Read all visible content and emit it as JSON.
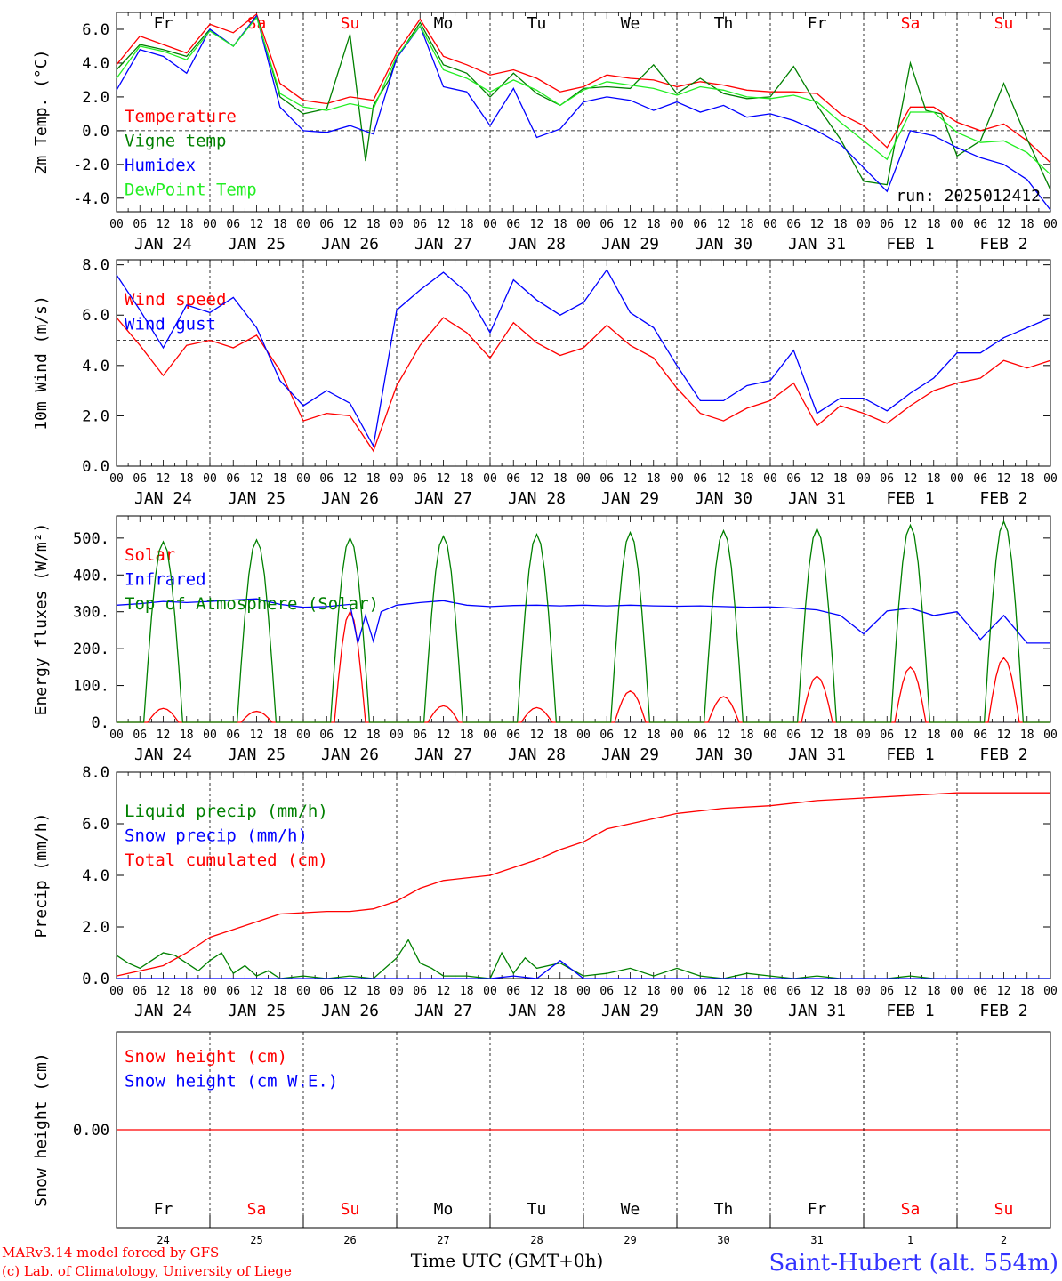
{
  "colors": {
    "red": "#ff0000",
    "green": "#008000",
    "blue": "#0000ff",
    "lightgreen": "#22ee22",
    "black": "#000000",
    "site": "#3333ff"
  },
  "time": {
    "start": "2025-01-24 00 UTC",
    "days": [
      "JAN 24",
      "JAN 25",
      "JAN 26",
      "JAN 27",
      "JAN 28",
      "JAN 29",
      "JAN 30",
      "JAN 31",
      "FEB  1",
      "FEB  2"
    ],
    "day_numbers": [
      "24",
      "25",
      "26",
      "27",
      "28",
      "29",
      "30",
      "31",
      "1",
      "2"
    ],
    "weekdays": [
      {
        "label": "Fr",
        "weekend": false
      },
      {
        "label": "Sa",
        "weekend": true
      },
      {
        "label": "Su",
        "weekend": true
      },
      {
        "label": "Mo",
        "weekend": false
      },
      {
        "label": "Tu",
        "weekend": false
      },
      {
        "label": "We",
        "weekend": false
      },
      {
        "label": "Th",
        "weekend": false
      },
      {
        "label": "Fr",
        "weekend": false
      },
      {
        "label": "Sa",
        "weekend": true
      },
      {
        "label": "Su",
        "weekend": true
      }
    ],
    "hour_labels": [
      "00",
      "06",
      "12",
      "18"
    ],
    "final_hour_label": "00"
  },
  "chart_data": [
    {
      "id": "temp",
      "type": "line",
      "ylabel": "2m Temp. (°C)",
      "ylim": [
        -4.8,
        7.0
      ],
      "yticks": [
        "6.0",
        "4.0",
        "2.0",
        "0.0",
        "-2.0",
        "-4.0"
      ],
      "ytick_values": [
        6,
        4,
        2,
        0,
        -2,
        -4
      ],
      "refline": 0,
      "run_label": "run: 2025012412",
      "series": [
        {
          "name": "Temperature",
          "color": "red",
          "x_hours": [
            0,
            6,
            12,
            18,
            24,
            30,
            36,
            42,
            48,
            54,
            60,
            66,
            72,
            78,
            84,
            90,
            96,
            102,
            108,
            114,
            120,
            126,
            132,
            138,
            144,
            150,
            156,
            162,
            168,
            174,
            180,
            186,
            192,
            198,
            204,
            210,
            216,
            222,
            228,
            234,
            240
          ],
          "values": [
            3.9,
            5.6,
            5.1,
            4.6,
            6.3,
            5.8,
            6.9,
            2.8,
            1.8,
            1.6,
            2.0,
            1.8,
            4.6,
            6.6,
            4.4,
            3.9,
            3.3,
            3.6,
            3.1,
            2.3,
            2.6,
            3.3,
            3.1,
            3.0,
            2.6,
            2.9,
            2.7,
            2.4,
            2.3,
            2.3,
            2.2,
            1.0,
            0.3,
            -1.0,
            1.4,
            1.4,
            0.5,
            0.0,
            0.4,
            -0.6,
            -1.9
          ]
        },
        {
          "name": "Vigne temp",
          "color": "green",
          "x_hours": [
            0,
            6,
            12,
            18,
            24,
            30,
            36,
            42,
            48,
            54,
            60,
            64,
            66,
            70,
            72,
            78,
            84,
            90,
            96,
            102,
            108,
            114,
            120,
            126,
            132,
            138,
            144,
            150,
            156,
            162,
            168,
            174,
            180,
            186,
            192,
            198,
            204,
            208,
            212,
            216,
            222,
            228,
            234,
            240
          ],
          "values": [
            3.6,
            5.1,
            4.8,
            4.4,
            6.0,
            5.0,
            6.8,
            2.0,
            1.0,
            1.3,
            5.7,
            -1.8,
            1.5,
            3.0,
            4.3,
            6.4,
            3.9,
            3.4,
            2.0,
            3.4,
            2.2,
            1.5,
            2.5,
            2.6,
            2.5,
            3.9,
            2.2,
            3.1,
            2.2,
            1.9,
            2.0,
            3.8,
            1.5,
            -0.5,
            -3.0,
            -3.2,
            4.0,
            1.2,
            1.0,
            -1.5,
            -0.6,
            2.8,
            -0.5,
            -3.5
          ]
        },
        {
          "name": "Humidex",
          "color": "blue",
          "x_hours": [
            0,
            6,
            12,
            18,
            24,
            30,
            36,
            42,
            48,
            54,
            60,
            66,
            72,
            78,
            84,
            90,
            96,
            102,
            108,
            114,
            120,
            126,
            132,
            138,
            144,
            150,
            156,
            162,
            168,
            174,
            180,
            186,
            192,
            198,
            204,
            210,
            216,
            222,
            228,
            234,
            240
          ],
          "values": [
            2.4,
            4.8,
            4.4,
            3.4,
            6.0,
            5.0,
            6.8,
            1.4,
            0.0,
            -0.1,
            0.3,
            -0.2,
            4.3,
            6.2,
            2.6,
            2.3,
            0.3,
            2.5,
            -0.4,
            0.1,
            1.7,
            2.0,
            1.8,
            1.2,
            1.7,
            1.1,
            1.5,
            0.8,
            1.0,
            0.6,
            0.0,
            -0.8,
            -2.2,
            -3.6,
            0.0,
            -0.3,
            -1.0,
            -1.6,
            -2.0,
            -2.9,
            -4.7
          ]
        },
        {
          "name": "DewPoint Temp",
          "color": "lightgreen",
          "x_hours": [
            0,
            6,
            12,
            18,
            24,
            30,
            36,
            42,
            48,
            54,
            60,
            66,
            72,
            78,
            84,
            90,
            96,
            102,
            108,
            114,
            120,
            126,
            132,
            138,
            144,
            150,
            156,
            162,
            168,
            174,
            180,
            186,
            192,
            198,
            204,
            210,
            216,
            222,
            228,
            234,
            240
          ],
          "values": [
            3.1,
            5.0,
            4.7,
            4.2,
            5.9,
            5.0,
            6.7,
            2.2,
            1.4,
            1.2,
            1.6,
            1.3,
            4.4,
            6.2,
            3.6,
            3.1,
            2.3,
            3.0,
            2.4,
            1.5,
            2.4,
            2.9,
            2.7,
            2.5,
            2.1,
            2.6,
            2.4,
            2.0,
            1.9,
            2.1,
            1.7,
            0.5,
            -0.6,
            -1.7,
            1.1,
            1.1,
            -0.1,
            -0.7,
            -0.6,
            -1.3,
            -2.6
          ]
        }
      ]
    },
    {
      "id": "wind",
      "type": "line",
      "ylabel": "10m Wind (m/s)",
      "ylim": [
        0,
        8.2
      ],
      "yticks": [
        "8.0",
        "6.0",
        "4.0",
        "2.0",
        "0.0"
      ],
      "ytick_values": [
        8,
        6,
        4,
        2,
        0
      ],
      "refline": 5.0,
      "series": [
        {
          "name": "Wind speed",
          "color": "red",
          "x_hours": [
            0,
            6,
            12,
            18,
            24,
            30,
            36,
            42,
            48,
            54,
            60,
            66,
            72,
            78,
            84,
            90,
            96,
            102,
            108,
            114,
            120,
            126,
            132,
            138,
            144,
            150,
            156,
            162,
            168,
            174,
            180,
            186,
            192,
            198,
            204,
            210,
            216,
            222,
            228,
            234,
            240
          ],
          "values": [
            5.9,
            4.8,
            3.6,
            4.8,
            5.0,
            4.7,
            5.2,
            3.8,
            1.8,
            2.1,
            2.0,
            0.6,
            3.2,
            4.8,
            5.9,
            5.3,
            4.3,
            5.7,
            4.9,
            4.4,
            4.7,
            5.6,
            4.8,
            4.3,
            3.1,
            2.1,
            1.8,
            2.3,
            2.6,
            3.3,
            1.6,
            2.4,
            2.1,
            1.7,
            2.4,
            3.0,
            3.3,
            3.5,
            4.2,
            3.9,
            4.2
          ]
        },
        {
          "name": "Wind gust",
          "color": "blue",
          "x_hours": [
            0,
            6,
            12,
            18,
            24,
            30,
            36,
            42,
            48,
            54,
            60,
            66,
            72,
            78,
            84,
            90,
            96,
            102,
            108,
            114,
            120,
            126,
            132,
            138,
            144,
            150,
            156,
            162,
            168,
            174,
            180,
            186,
            192,
            198,
            204,
            210,
            216,
            222,
            228,
            234,
            240
          ],
          "values": [
            7.6,
            6.2,
            4.7,
            6.4,
            6.1,
            6.7,
            5.5,
            3.4,
            2.4,
            3.0,
            2.5,
            0.8,
            6.2,
            7.0,
            7.7,
            6.9,
            5.3,
            7.4,
            6.6,
            6.0,
            6.5,
            7.8,
            6.1,
            5.5,
            4.0,
            2.6,
            2.6,
            3.2,
            3.4,
            4.6,
            2.1,
            2.7,
            2.7,
            2.2,
            2.9,
            3.5,
            4.5,
            4.5,
            5.1,
            5.5,
            5.9
          ]
        }
      ]
    },
    {
      "id": "energy",
      "type": "line",
      "ylabel": "Energy fluxes (W/m²)",
      "ylim": [
        0,
        560
      ],
      "yticks": [
        "500.",
        "400.",
        "300.",
        "200.",
        "100.",
        "0."
      ],
      "ytick_values": [
        500,
        400,
        300,
        200,
        100,
        0
      ],
      "series": [
        {
          "name": "Solar",
          "color": "red",
          "daily_peaks": [
            38,
            30,
            300,
            45,
            40,
            85,
            70,
            125,
            150,
            175
          ],
          "x_hours": [],
          "values": []
        },
        {
          "name": "Infrared",
          "color": "blue",
          "x_hours": [
            0,
            6,
            12,
            18,
            24,
            30,
            36,
            42,
            48,
            54,
            60,
            62,
            64,
            66,
            68,
            72,
            78,
            84,
            90,
            96,
            102,
            108,
            114,
            120,
            126,
            132,
            138,
            144,
            150,
            156,
            162,
            168,
            174,
            180,
            186,
            192,
            198,
            204,
            210,
            216,
            222,
            228,
            234,
            240
          ],
          "values": [
            318,
            322,
            328,
            325,
            328,
            332,
            335,
            320,
            312,
            314,
            320,
            215,
            290,
            220,
            300,
            318,
            325,
            330,
            318,
            314,
            317,
            318,
            316,
            318,
            316,
            318,
            316,
            315,
            316,
            314,
            312,
            313,
            310,
            305,
            290,
            240,
            302,
            310,
            290,
            300,
            225,
            290,
            215,
            215
          ]
        },
        {
          "name": "Top of Atmosphere (Solar)",
          "color": "green",
          "daily_peaks": [
            490,
            495,
            500,
            505,
            510,
            515,
            520,
            525,
            535,
            545
          ],
          "x_hours": [],
          "values": []
        }
      ]
    },
    {
      "id": "precip",
      "type": "line",
      "ylabel": "Precip (mm/h)",
      "ylim": [
        0,
        8.0
      ],
      "yticks": [
        "8.0",
        "6.0",
        "4.0",
        "2.0",
        "0.0"
      ],
      "ytick_values": [
        8,
        6,
        4,
        2,
        0
      ],
      "series": [
        {
          "name": "Liquid precip (mm/h)",
          "color": "green",
          "x_hours": [
            0,
            3,
            6,
            9,
            12,
            15,
            18,
            21,
            24,
            27,
            30,
            33,
            36,
            39,
            42,
            48,
            54,
            60,
            66,
            72,
            75,
            78,
            81,
            84,
            90,
            96,
            99,
            102,
            105,
            108,
            114,
            120,
            126,
            132,
            138,
            144,
            150,
            156,
            162,
            168,
            174,
            180,
            186,
            192,
            198,
            204,
            210,
            216,
            222,
            228,
            234,
            240
          ],
          "values": [
            0.9,
            0.6,
            0.4,
            0.7,
            1.0,
            0.9,
            0.6,
            0.3,
            0.7,
            1.0,
            0.2,
            0.5,
            0.1,
            0.3,
            0.0,
            0.1,
            0.0,
            0.1,
            0.0,
            0.8,
            1.5,
            0.6,
            0.4,
            0.1,
            0.1,
            0.0,
            1.0,
            0.2,
            0.8,
            0.4,
            0.6,
            0.1,
            0.2,
            0.4,
            0.1,
            0.4,
            0.1,
            0.0,
            0.2,
            0.1,
            0.0,
            0.1,
            0.0,
            0.0,
            0.0,
            0.1,
            0.0,
            0.0,
            0.0,
            0.0,
            0.0,
            0.0
          ]
        },
        {
          "name": "Snow precip (mm/h)",
          "color": "blue",
          "x_hours": [
            0,
            96,
            102,
            108,
            114,
            120,
            240
          ],
          "values": [
            0,
            0,
            0.1,
            0.0,
            0.7,
            0.0,
            0
          ]
        },
        {
          "name": "Total cumulated (cm)",
          "color": "red",
          "x_hours": [
            0,
            12,
            18,
            24,
            36,
            42,
            54,
            60,
            66,
            72,
            78,
            84,
            90,
            96,
            102,
            108,
            114,
            120,
            126,
            132,
            138,
            144,
            156,
            168,
            180,
            192,
            204,
            216,
            228,
            240
          ],
          "values": [
            0.1,
            0.5,
            1.0,
            1.6,
            2.2,
            2.5,
            2.6,
            2.6,
            2.7,
            3.0,
            3.5,
            3.8,
            3.9,
            4.0,
            4.3,
            4.6,
            5.0,
            5.3,
            5.8,
            6.0,
            6.2,
            6.4,
            6.6,
            6.7,
            6.9,
            7.0,
            7.1,
            7.2,
            7.2,
            7.2
          ]
        }
      ]
    },
    {
      "id": "snow",
      "type": "line",
      "ylabel": "Snow height (cm)",
      "ylim": [
        -1,
        1
      ],
      "yticks": [
        "0.00"
      ],
      "ytick_values": [
        0
      ],
      "series": [
        {
          "name": "Snow height (cm)",
          "color": "red",
          "x_hours": [
            0,
            240
          ],
          "values": [
            0,
            0
          ]
        },
        {
          "name": "Snow height (cm W.E.)",
          "color": "blue",
          "x_hours": [],
          "values": []
        }
      ]
    }
  ],
  "footer": {
    "model_line": "MARv3.14 model forced by GFS",
    "credit_line": "(c) Lab. of Climatology, University of Liege",
    "time_label": "Time UTC (GMT+0h)",
    "site": "Saint-Hubert (alt. 554m)"
  }
}
